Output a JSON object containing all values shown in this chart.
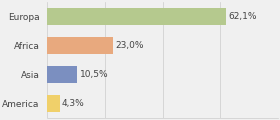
{
  "categories": [
    "Europa",
    "Africa",
    "Asia",
    "America"
  ],
  "values": [
    62.1,
    23.0,
    10.5,
    4.3
  ],
  "labels": [
    "62,1%",
    "23,0%",
    "10,5%",
    "4,3%"
  ],
  "bar_colors": [
    "#b5c98e",
    "#e8a97e",
    "#7b8fc0",
    "#f0d06a"
  ],
  "background_color": "#f0f0f0",
  "xlim": [
    0,
    80
  ],
  "bar_height": 0.6,
  "figsize": [
    2.8,
    1.2
  ],
  "dpi": 100,
  "label_fontsize": 6.5,
  "ytick_fontsize": 6.5
}
